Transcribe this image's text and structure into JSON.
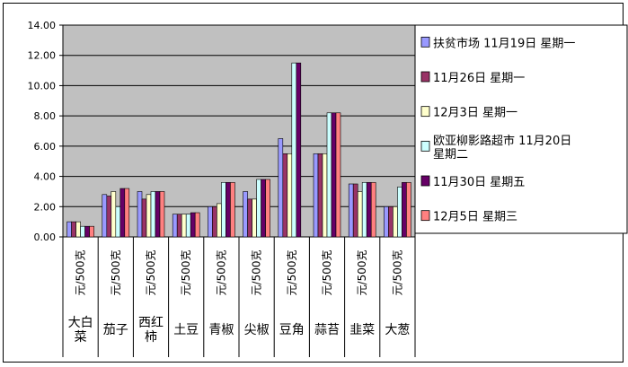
{
  "chart_data": {
    "type": "bar",
    "title": "",
    "xlabel": "",
    "ylabel": "",
    "ylim": [
      0,
      14
    ],
    "yticks": [
      "0.00",
      "2.00",
      "4.00",
      "6.00",
      "8.00",
      "10.00",
      "12.00",
      "14.00"
    ],
    "grid": true,
    "legend_position": "right",
    "unit_label": "元/500克",
    "categories": [
      "大白菜",
      "茄子",
      "西红柿",
      "土豆",
      "青椒",
      "尖椒",
      "豆角",
      "蒜苔",
      "韭菜",
      "大葱"
    ],
    "series": [
      {
        "name": "扶贫市场 11月19日 星期一",
        "color": "#9999ff",
        "values": [
          1.0,
          2.8,
          3.0,
          1.5,
          2.0,
          3.0,
          6.5,
          5.5,
          3.5,
          2.0
        ]
      },
      {
        "name": "11月26日 星期一",
        "color": "#993366",
        "values": [
          1.0,
          2.7,
          2.5,
          1.5,
          2.0,
          2.5,
          5.5,
          5.5,
          3.5,
          2.0
        ]
      },
      {
        "name": "12月3日 星期一",
        "color": "#ffffcc",
        "values": [
          1.0,
          3.0,
          2.8,
          1.5,
          2.2,
          2.5,
          5.5,
          5.5,
          3.0,
          2.0
        ]
      },
      {
        "name": "欧亚柳影路超市 11月20日 星期二",
        "color": "#ccffff",
        "values": [
          0.7,
          2.0,
          3.0,
          1.5,
          3.6,
          3.8,
          11.5,
          8.2,
          3.6,
          3.3
        ]
      },
      {
        "name": "11月30日 星期五",
        "color": "#660066",
        "values": [
          0.7,
          3.2,
          3.0,
          1.6,
          3.6,
          3.8,
          11.5,
          8.2,
          3.6,
          3.6
        ]
      },
      {
        "name": "12月5日 星期三",
        "color": "#ff8080",
        "values": [
          0.7,
          3.2,
          3.0,
          1.6,
          3.6,
          3.8,
          0,
          8.2,
          3.6,
          3.6
        ]
      }
    ]
  },
  "colors": {
    "plot_background": "#c0c0c0",
    "gridline": "#000000",
    "frame": "#000000"
  }
}
